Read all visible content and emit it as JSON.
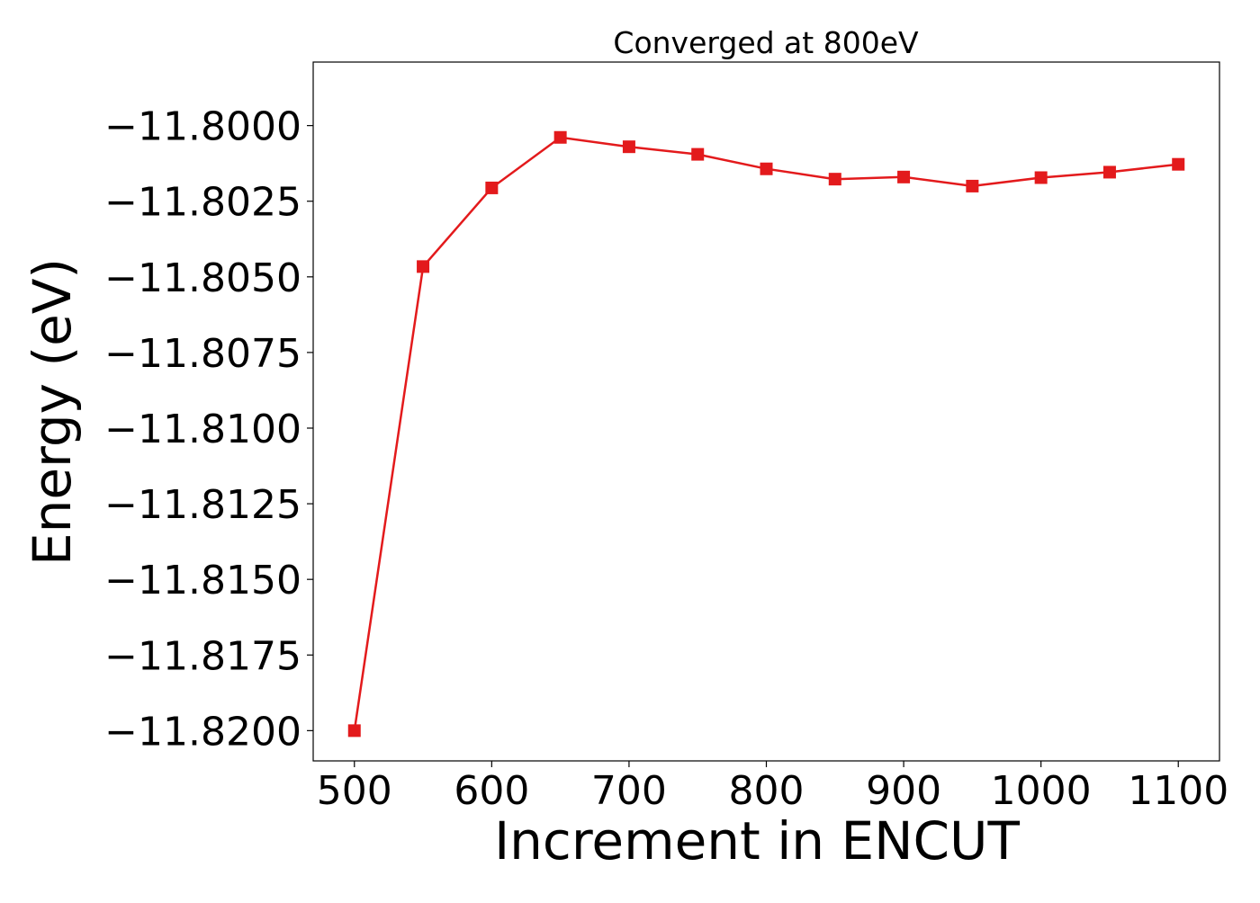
{
  "chart_data": {
    "type": "line",
    "title": "Converged at 800eV",
    "xlabel": "Increment in ENCUT",
    "ylabel": "Energy (eV)",
    "xlim": [
      470,
      1130
    ],
    "ylim": [
      -11.821,
      -11.7979
    ],
    "xticks": [
      500,
      600,
      700,
      800,
      900,
      1000,
      1100
    ],
    "xtick_labels": [
      "500",
      "600",
      "700",
      "800",
      "900",
      "1000",
      "1100"
    ],
    "yticks": [
      -11.82,
      -11.8175,
      -11.815,
      -11.8125,
      -11.81,
      -11.8075,
      -11.805,
      -11.8025,
      -11.8
    ],
    "ytick_labels": [
      "−11.8200",
      "−11.8175",
      "−11.8150",
      "−11.8125",
      "−11.8100",
      "−11.8075",
      "−11.8050",
      "−11.8025",
      "−11.8000"
    ],
    "grid": false,
    "legend": false,
    "series": [
      {
        "color": "#e31a1c",
        "marker": "square",
        "x": [
          500,
          550,
          600,
          650,
          700,
          750,
          800,
          850,
          900,
          950,
          1000,
          1050,
          1100
        ],
        "y": [
          -11.82,
          -11.80466,
          -11.80206,
          -11.80039,
          -11.8007,
          -11.80095,
          -11.80143,
          -11.80177,
          -11.8017,
          -11.802,
          -11.80172,
          -11.80154,
          -11.80128
        ]
      }
    ]
  }
}
